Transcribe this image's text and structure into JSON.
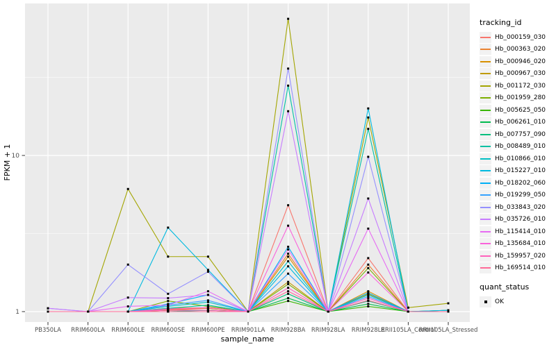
{
  "figure": {
    "y_axis": {
      "label": "FPKM + 1"
    },
    "x_axis": {
      "label": "sample_name"
    },
    "legend": {
      "title": "tracking_id"
    },
    "quant_legend": {
      "title": "quant_status",
      "ok_label": "OK"
    }
  },
  "chart_data": {
    "type": "line",
    "title": "",
    "xlabel": "sample_name",
    "ylabel": "FPKM + 1",
    "x_type": "categorical",
    "y_scale": "log10",
    "ylim": [
      0.86,
      94
    ],
    "y_major_ticks": [
      1,
      10
    ],
    "y_minor_gridlines": [
      3.162,
      31.623
    ],
    "grid": true,
    "legend_position": "right",
    "legend_title": "tracking_id",
    "quant_status": {
      "title": "quant_status",
      "items": [
        "OK"
      ],
      "marker": "black-square"
    },
    "panel_background": "#EBEBEB",
    "gridline_color": "#FFFFFF",
    "point_color": "#000000",
    "tick_label_color": "#4d4d4d",
    "categories": [
      "PB350LA",
      "RRIM600LA",
      "RRIM600LE",
      "RRIM600SE",
      "RRIM600PE",
      "RRIM901LA",
      "RRIM928BA",
      "RRIM928LA",
      "RRIM928LE",
      "RRII105LA_Control",
      "RRII105LA_Stressed"
    ],
    "series": [
      {
        "name": "Hb_000159_030",
        "color": "#F8766D",
        "values": [
          1,
          1,
          1,
          1.02,
          1.05,
          1,
          4.8,
          1,
          2.2,
          1,
          1
        ]
      },
      {
        "name": "Hb_000363_020",
        "color": "#EA8331",
        "values": [
          1,
          1,
          1,
          1.03,
          1.05,
          1,
          2.35,
          1,
          2.0,
          1,
          1
        ]
      },
      {
        "name": "Hb_000946_020",
        "color": "#D89000",
        "values": [
          1,
          1,
          1,
          1.05,
          1.06,
          1,
          2.25,
          1,
          1.35,
          1,
          1
        ]
      },
      {
        "name": "Hb_000967_030",
        "color": "#C09B00",
        "values": [
          1,
          1,
          1,
          1.02,
          1.02,
          1,
          1.55,
          1,
          1.3,
          1,
          1
        ]
      },
      {
        "name": "Hb_001172_030",
        "color": "#A3A500",
        "values": [
          1,
          1,
          6.1,
          2.25,
          2.25,
          1,
          75,
          1,
          17.5,
          1.06,
          1.13
        ]
      },
      {
        "name": "Hb_001959_280",
        "color": "#7CAE00",
        "values": [
          1,
          1,
          1,
          1.17,
          1.08,
          1,
          1.5,
          1,
          1.9,
          1,
          1.02
        ]
      },
      {
        "name": "Hb_005625_050",
        "color": "#39B600",
        "values": [
          1,
          1,
          1,
          1.02,
          1.02,
          1,
          1.17,
          1,
          1.08,
          1,
          1
        ]
      },
      {
        "name": "Hb_006261_010",
        "color": "#00BB4E",
        "values": [
          1,
          1,
          1,
          1,
          1,
          1,
          1.22,
          1,
          1.12,
          1,
          1
        ]
      },
      {
        "name": "Hb_007757_090",
        "color": "#00BF7D",
        "values": [
          1,
          1,
          1,
          1,
          1.02,
          1,
          1.3,
          1,
          1.17,
          1,
          1
        ]
      },
      {
        "name": "Hb_008489_010",
        "color": "#00C1A3",
        "values": [
          1,
          1,
          1,
          1.05,
          1.1,
          1,
          28,
          1,
          14.8,
          1,
          1
        ]
      },
      {
        "name": "Hb_010866_010",
        "color": "#00BFC4",
        "values": [
          1,
          1,
          1,
          1.08,
          1.15,
          1,
          2.1,
          1,
          1.28,
          1,
          1.02
        ]
      },
      {
        "name": "Hb_015227_010",
        "color": "#00BAE0",
        "values": [
          1,
          1,
          1,
          3.45,
          1.85,
          1,
          1.95,
          1,
          20,
          1,
          1.02
        ]
      },
      {
        "name": "Hb_018202_060",
        "color": "#00B0F6",
        "values": [
          1,
          1,
          1,
          1.12,
          1.28,
          1,
          2.6,
          1,
          1.32,
          1,
          1
        ]
      },
      {
        "name": "Hb_019299_050",
        "color": "#35A2FF",
        "values": [
          1,
          1,
          1,
          1.1,
          1.18,
          1,
          1.75,
          1,
          1.25,
          1,
          1
        ]
      },
      {
        "name": "Hb_033843_020",
        "color": "#9590FF",
        "values": [
          1.05,
          1,
          2.0,
          1.3,
          1.8,
          1,
          36,
          1,
          9.8,
          1,
          1
        ]
      },
      {
        "name": "Hb_035726_010",
        "color": "#C77CFF",
        "values": [
          1.05,
          1,
          1.23,
          1.22,
          1.28,
          1,
          19.2,
          1,
          5.3,
          1,
          1
        ]
      },
      {
        "name": "Hb_115414_010",
        "color": "#E76BF3",
        "values": [
          1,
          1,
          1.08,
          1.1,
          1.35,
          1,
          2.5,
          1,
          3.4,
          1,
          1
        ]
      },
      {
        "name": "Hb_135684_010",
        "color": "#FA62DB",
        "values": [
          1,
          1,
          1,
          1.04,
          1.06,
          1,
          3.55,
          1,
          1.78,
          1,
          1
        ]
      },
      {
        "name": "Hb_159957_020",
        "color": "#FF62BC",
        "values": [
          1,
          1,
          1,
          1.02,
          1.02,
          1,
          1.42,
          1,
          1.22,
          1,
          1
        ]
      },
      {
        "name": "Hb_169514_010",
        "color": "#FF6A98",
        "values": [
          1,
          1,
          1,
          1,
          1,
          1,
          1.35,
          1,
          1.18,
          1,
          1
        ]
      }
    ]
  }
}
